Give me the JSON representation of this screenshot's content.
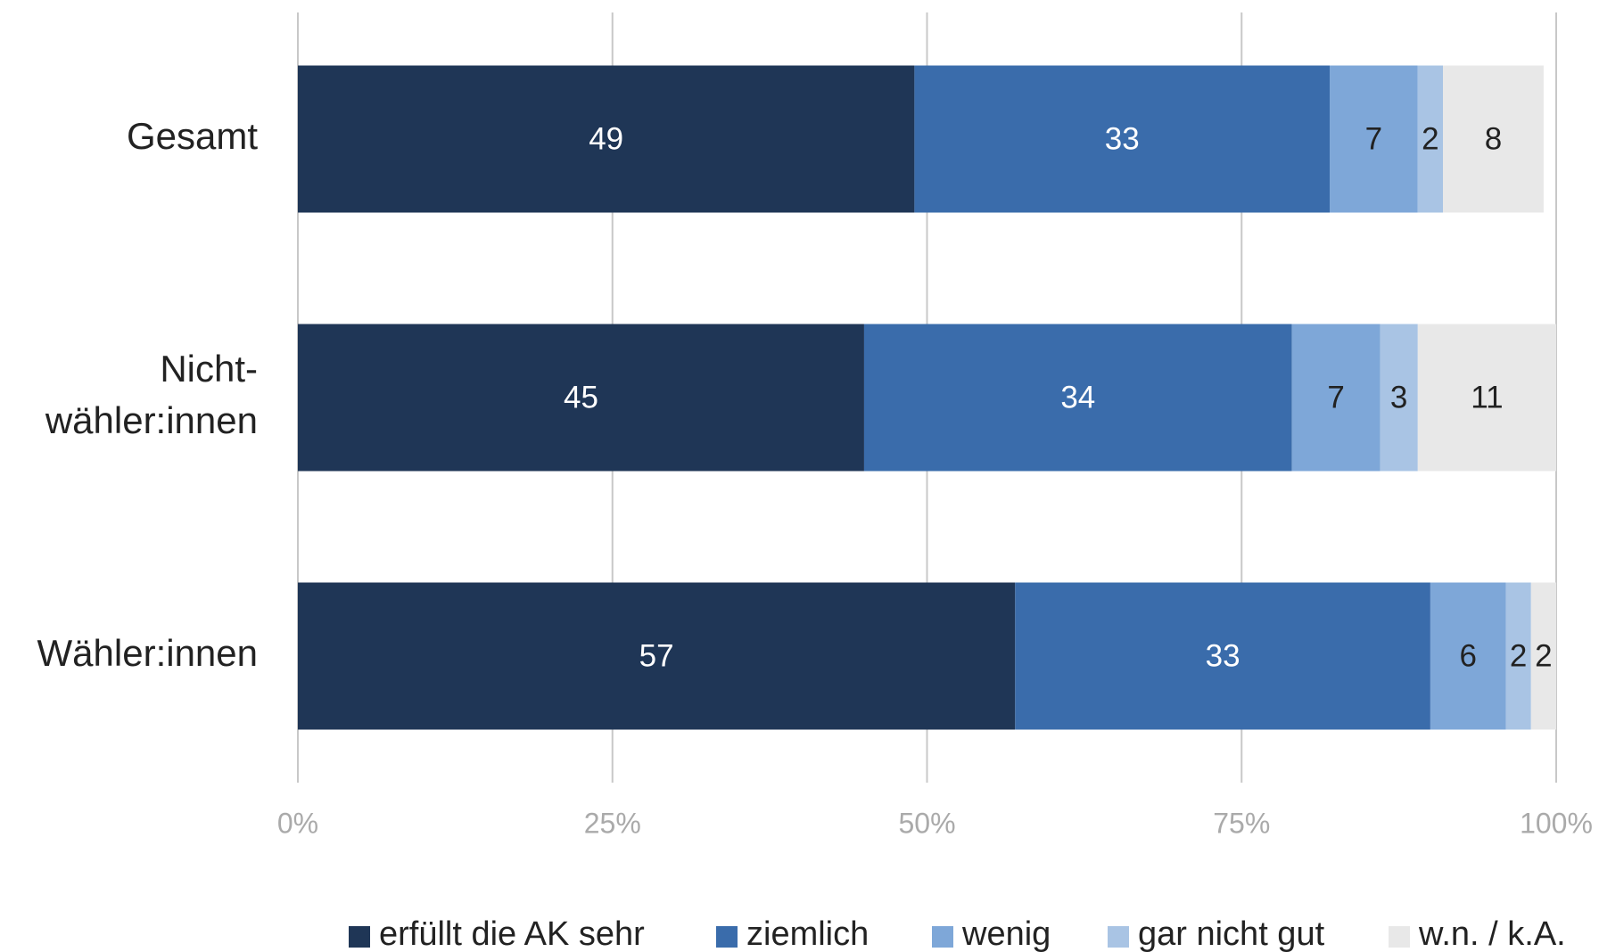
{
  "chart_data": {
    "type": "stacked-bar-horizontal",
    "categories": [
      "Gesamt",
      "Nicht-\nwähler:innen",
      "Wähler:innen"
    ],
    "series": [
      {
        "name": "erfüllt die AK sehr",
        "color": "#1f3656",
        "label_color": "#ffffff",
        "values": [
          49,
          45,
          57
        ]
      },
      {
        "name": "ziemlich",
        "color": "#3a6cab",
        "label_color": "#ffffff",
        "values": [
          33,
          34,
          33
        ]
      },
      {
        "name": "wenig",
        "color": "#7ea7d8",
        "label_color": "#222222",
        "values": [
          7,
          7,
          6
        ]
      },
      {
        "name": "gar nicht gut",
        "color": "#a9c4e4",
        "label_color": "#222222",
        "values": [
          2,
          3,
          2
        ]
      },
      {
        "name": "w.n. / k.A.",
        "color": "#e8e8e8",
        "label_color": "#222222",
        "values": [
          8,
          11,
          2
        ]
      }
    ],
    "xlim": [
      0,
      100
    ],
    "xticks": [
      {
        "value": 0,
        "label": "0%"
      },
      {
        "value": 25,
        "label": "25%"
      },
      {
        "value": 50,
        "label": "50%"
      },
      {
        "value": 75,
        "label": "75%"
      },
      {
        "value": 100,
        "label": "100%"
      }
    ],
    "grid": true,
    "legend": "bottom"
  }
}
